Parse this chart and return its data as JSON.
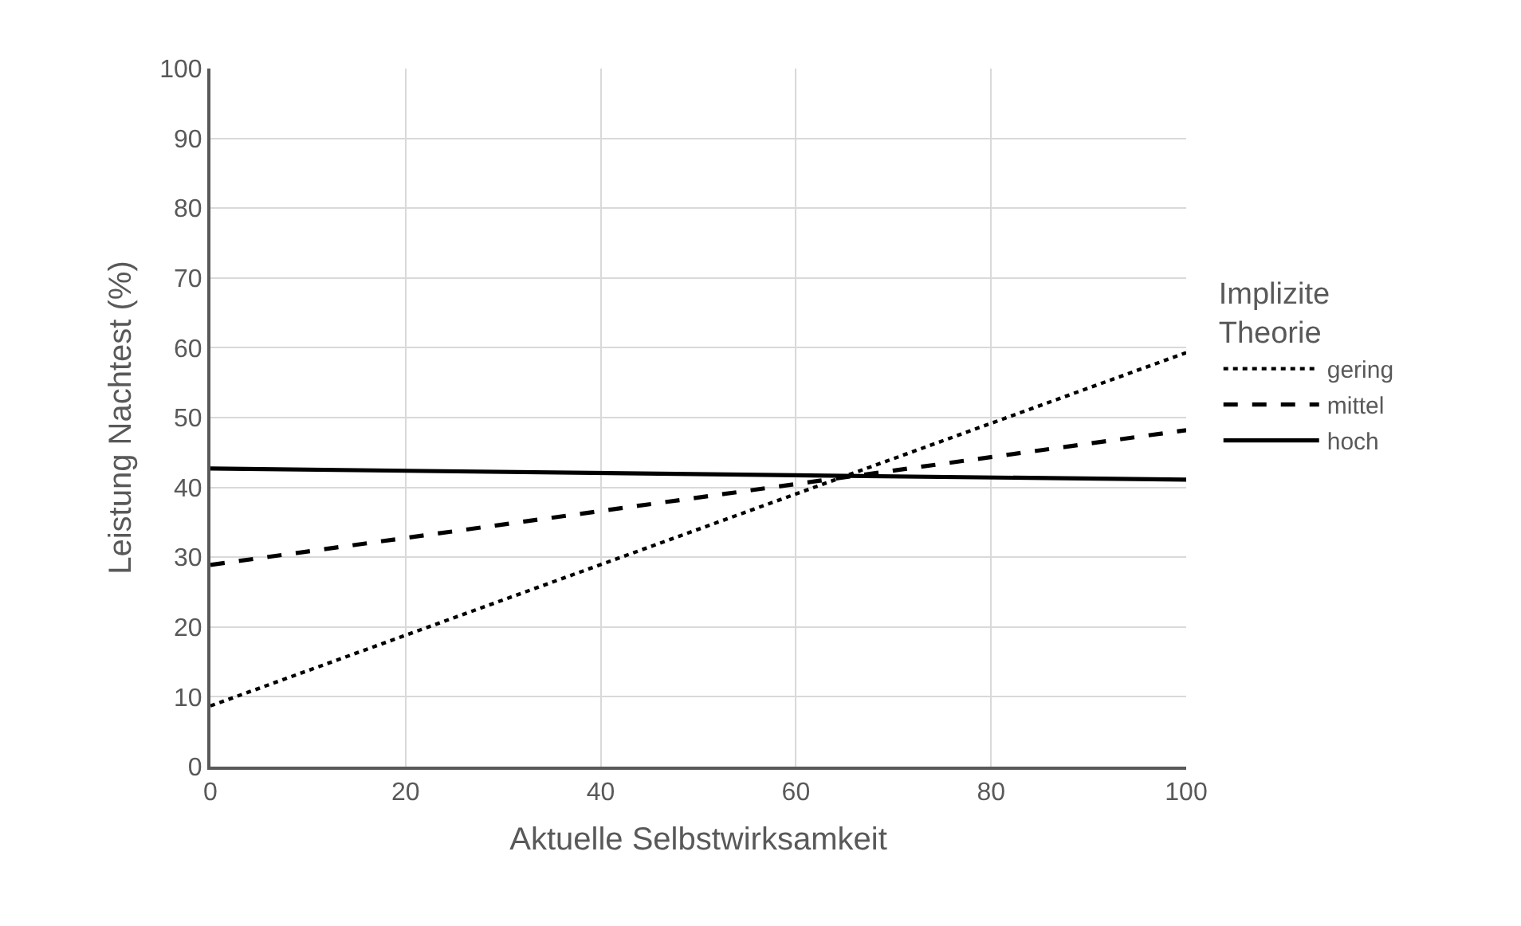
{
  "chart_data": {
    "type": "line",
    "xlabel": "Aktuelle Selbstwirksamkeit",
    "ylabel": "Leistung Nachtest (%)",
    "legend_title": "Implizite Theorie",
    "x": [
      0,
      100
    ],
    "series": [
      {
        "name": "gering",
        "color": "#000000",
        "line_style": "dotted",
        "values": [
          8.7,
          59.3
        ]
      },
      {
        "name": "mittel",
        "color": "#000000",
        "line_style": "dashed",
        "values": [
          28.9,
          48.2
        ]
      },
      {
        "name": "hoch",
        "color": "#000000",
        "line_style": "solid",
        "values": [
          42.7,
          41.1
        ]
      }
    ],
    "xlim": [
      0,
      100
    ],
    "xticks": [
      0,
      20,
      40,
      60,
      80,
      100
    ],
    "ylim": [
      0,
      100
    ],
    "yticks": [
      0,
      10,
      20,
      30,
      40,
      50,
      60,
      70,
      80,
      90,
      100
    ],
    "grid": true,
    "legend": "right",
    "marker": "none"
  }
}
